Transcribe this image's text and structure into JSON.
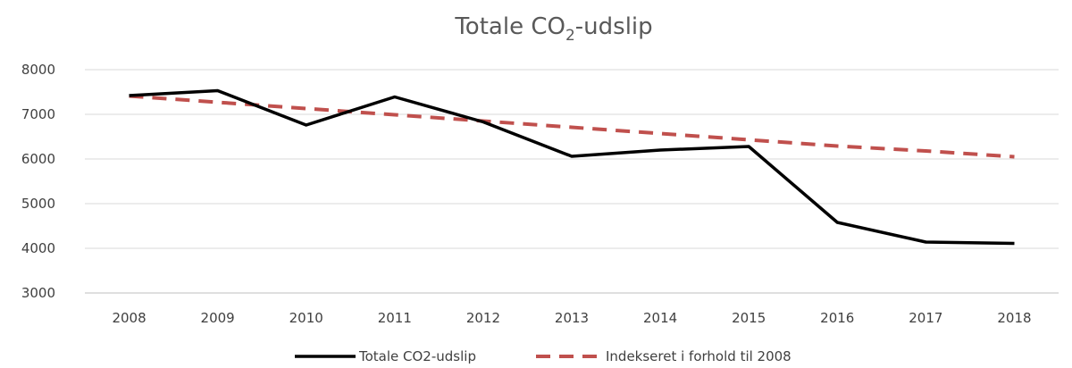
{
  "chart_data": {
    "type": "line",
    "title": {
      "prefix": "Totale CO",
      "subscript": "2",
      "suffix": "-udslip"
    },
    "xlabel": "",
    "ylabel": "",
    "categories": [
      "2008",
      "2009",
      "2010",
      "2011",
      "2012",
      "2013",
      "2014",
      "2015",
      "2016",
      "2017",
      "2018"
    ],
    "ylim": [
      3000,
      8000
    ],
    "yticks": [
      "3000",
      "4000",
      "5000",
      "6000",
      "7000",
      "8000"
    ],
    "grid": true,
    "legend_position": "bottom",
    "series": [
      {
        "name": "Totale CO2-udslip",
        "values": [
          7420,
          7530,
          6760,
          7390,
          6830,
          6060,
          6200,
          6280,
          4580,
          4140,
          4110
        ],
        "color": "#000000",
        "style": "solid"
      },
      {
        "name": "Indekseret i forhold til 2008",
        "values": [
          7410,
          7270,
          7130,
          6990,
          6850,
          6710,
          6570,
          6430,
          6290,
          6180,
          6050
        ],
        "color": "#c0504d",
        "style": "dashed"
      }
    ]
  }
}
